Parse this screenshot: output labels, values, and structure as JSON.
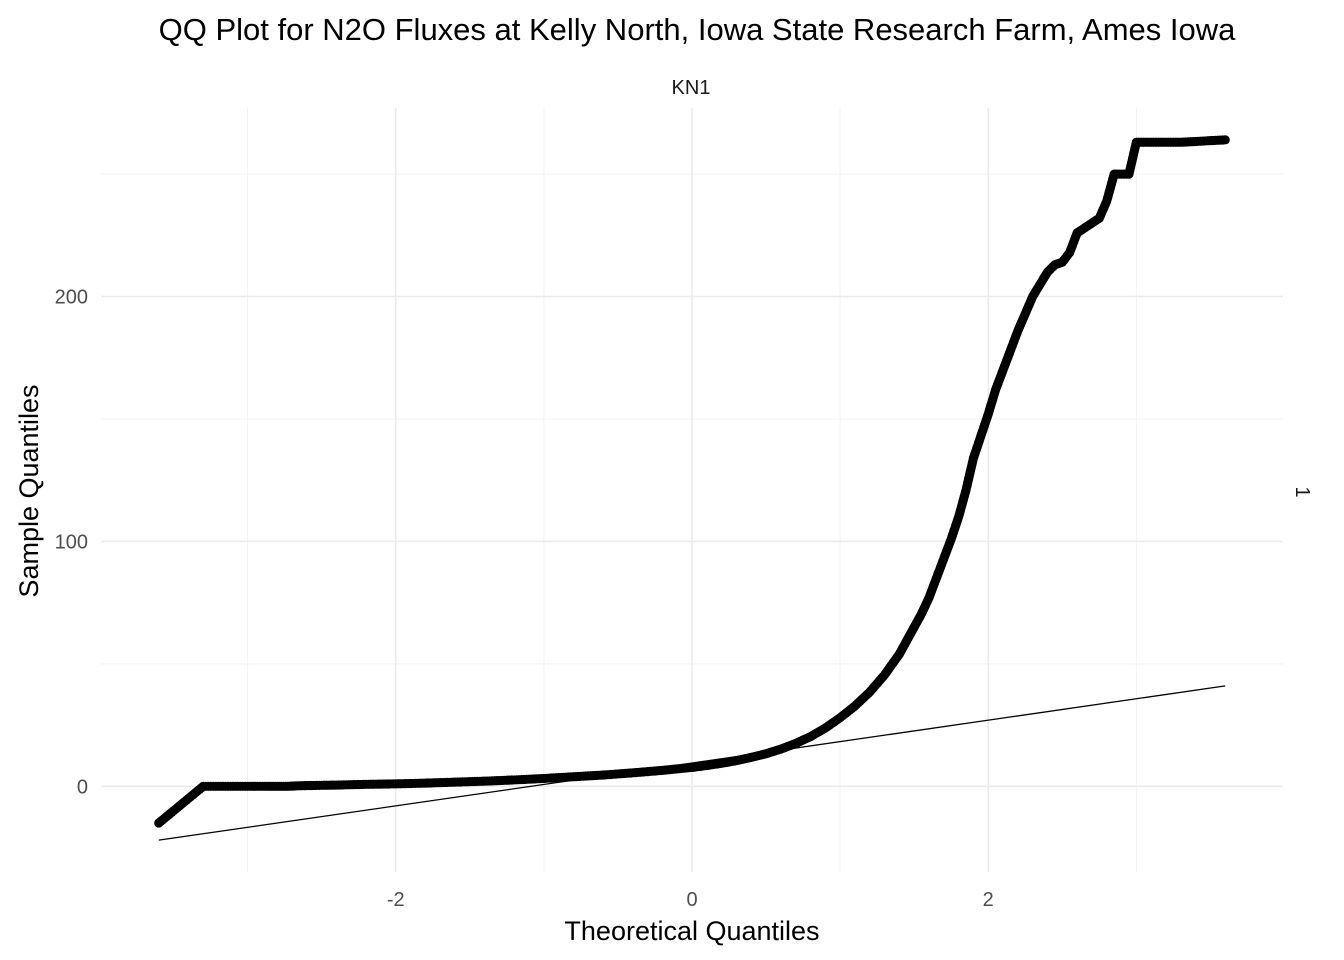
{
  "chart_data": {
    "type": "scatter",
    "title": "QQ Plot for N2O Fluxes at Kelly North, Iowa State Research Farm, Ames Iowa",
    "facet_top": "KN1",
    "facet_right": "1",
    "xlabel": "Theoretical Quantiles",
    "ylabel": "Sample Quantiles",
    "xlim": [
      -3.99,
      3.99
    ],
    "ylim": [
      -35,
      277
    ],
    "x_ticks": [
      -2,
      0,
      2
    ],
    "x_tick_labels": [
      "-2",
      "0",
      "2"
    ],
    "y_ticks": [
      0,
      100,
      200
    ],
    "y_tick_labels": [
      "0",
      "100",
      "200"
    ],
    "grid": true,
    "legend": "none",
    "reference_line": {
      "x": [
        -3.6,
        3.6
      ],
      "y": [
        -22,
        41
      ]
    },
    "points": {
      "x": [
        -3.6,
        -3.3,
        -3.15,
        -3.05,
        -2.95,
        -2.87,
        -2.8,
        -2.73,
        -2.66,
        -2.6,
        -2.4,
        -2.2,
        -2.0,
        -1.8,
        -1.6,
        -1.4,
        -1.2,
        -1.0,
        -0.8,
        -0.6,
        -0.4,
        -0.2,
        0.0,
        0.1,
        0.2,
        0.3,
        0.4,
        0.5,
        0.6,
        0.7,
        0.8,
        0.9,
        1.0,
        1.1,
        1.2,
        1.3,
        1.4,
        1.45,
        1.5,
        1.55,
        1.6,
        1.65,
        1.7,
        1.75,
        1.8,
        1.85,
        1.9,
        1.95,
        2.0,
        2.05,
        2.1,
        2.15,
        2.2,
        2.25,
        2.3,
        2.35,
        2.4,
        2.45,
        2.5,
        2.55,
        2.6,
        2.65,
        2.7,
        2.75,
        2.8,
        2.85,
        2.9,
        2.95,
        3.0,
        3.15,
        3.3,
        3.6
      ],
      "y": [
        -15,
        0,
        0,
        0,
        0,
        0,
        0,
        0,
        0.2,
        0.3,
        0.5,
        0.8,
        1.0,
        1.3,
        1.7,
        2.1,
        2.6,
        3.2,
        3.9,
        4.6,
        5.5,
        6.5,
        7.7,
        8.5,
        9.4,
        10.5,
        11.8,
        13.3,
        15.2,
        17.5,
        20.3,
        23.8,
        28.0,
        32.8,
        38.5,
        45.5,
        54.0,
        59.5,
        65.0,
        70.5,
        77.0,
        85.0,
        93.0,
        101.0,
        110.0,
        121.0,
        134.0,
        143.0,
        152.0,
        162.0,
        170.0,
        178.0,
        186.0,
        193.0,
        200.0,
        205.0,
        210.0,
        213.0,
        214.0,
        218.0,
        226.0,
        228.0,
        230.0,
        232.0,
        239.0,
        250.0,
        250.0,
        250.0,
        263.0,
        263.0,
        263.0,
        264.0
      ]
    }
  }
}
